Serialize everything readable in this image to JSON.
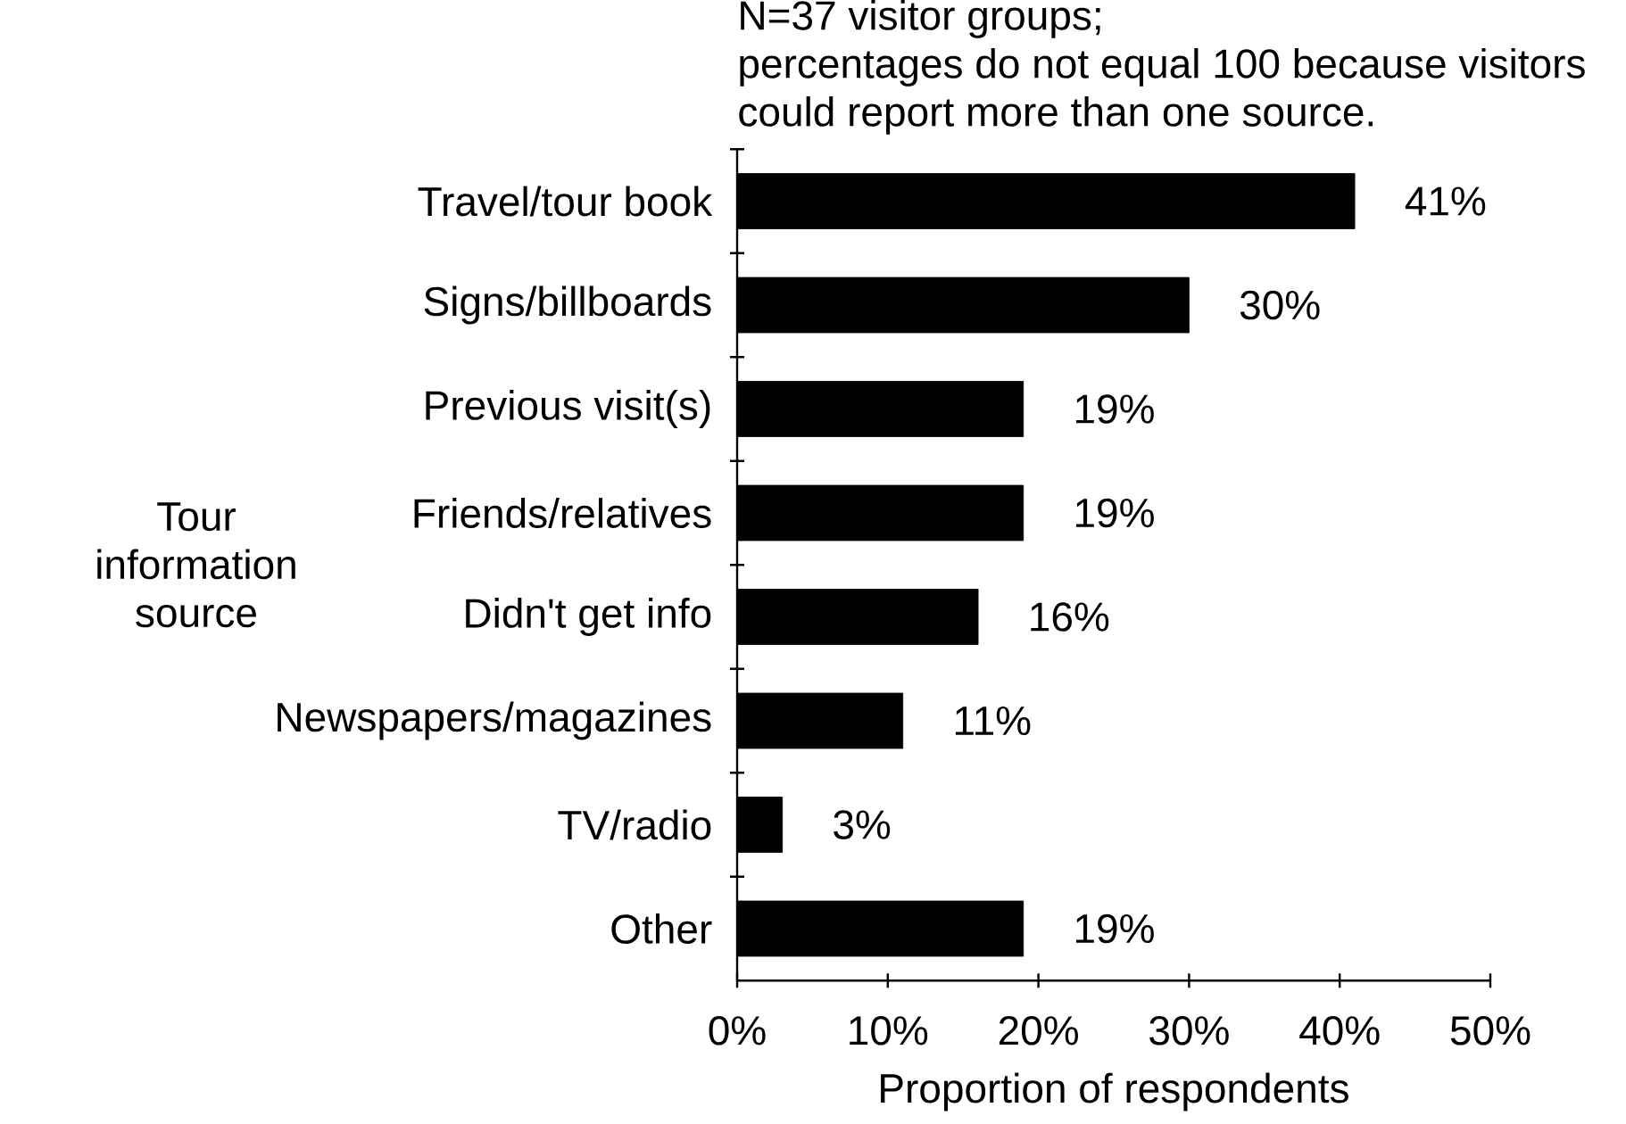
{
  "chart_data": {
    "type": "bar",
    "orientation": "horizontal",
    "categories": [
      "Travel/tour book",
      "Signs/billboards",
      "Previous visit(s)",
      "Friends/relatives",
      "Didn't get info",
      "Newspapers/magazines",
      "TV/radio",
      "Other"
    ],
    "values": [
      41,
      30,
      19,
      19,
      16,
      11,
      3,
      19
    ],
    "value_labels": [
      "41%",
      "30%",
      "19%",
      "19%",
      "16%",
      "11%",
      "3%",
      "19%"
    ],
    "color": "#000000",
    "xlim": [
      0,
      50
    ],
    "xticks": [
      {
        "value": 0,
        "label": "0%"
      },
      {
        "value": 10,
        "label": "10%"
      },
      {
        "value": 20,
        "label": "20%"
      },
      {
        "value": 30,
        "label": "30%"
      },
      {
        "value": 40,
        "label": "40%"
      },
      {
        "value": 50,
        "label": "50%"
      }
    ],
    "xlabel": "Proportion of respondents",
    "ylabel": "Tour information source",
    "annotations": [
      "N=37 visitor groups;",
      "percentages do not equal 100 because visitors could report more than one source."
    ]
  }
}
